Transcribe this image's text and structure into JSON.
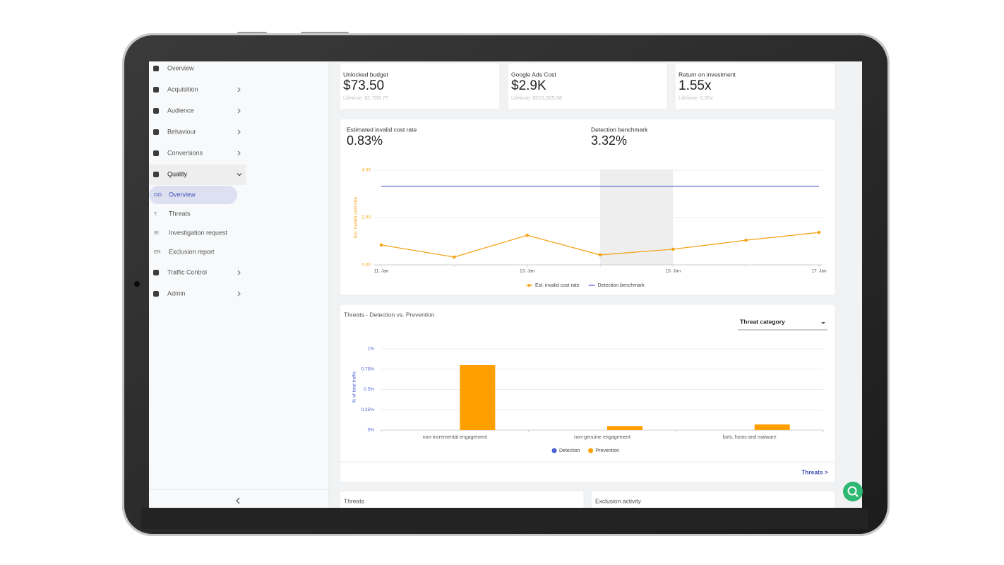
{
  "sidebar": {
    "nav": [
      {
        "label": "Overview",
        "chevron": "none"
      },
      {
        "label": "Acquisition",
        "chevron": "right"
      },
      {
        "label": "Audience",
        "chevron": "right"
      },
      {
        "label": "Behaviour",
        "chevron": "right"
      },
      {
        "label": "Conversions",
        "chevron": "right"
      },
      {
        "label": "Quality",
        "chevron": "down"
      }
    ],
    "quality_sub": [
      {
        "icon": "OO",
        "label": "Overview"
      },
      {
        "icon": "T",
        "label": "Threats"
      },
      {
        "icon": "IR",
        "label": "Investigation request"
      },
      {
        "icon": "ER",
        "label": "Exclusion report"
      }
    ],
    "nav_after": [
      {
        "label": "Traffic Control",
        "chevron": "right"
      },
      {
        "label": "Admin",
        "chevron": "right"
      }
    ]
  },
  "kpis": [
    {
      "label": "Unlocked budget",
      "value": "$73.50",
      "lifetime": "Lifetime: $1,708.77"
    },
    {
      "label": "Google Ads Cost",
      "value": "$2.9K",
      "lifetime": "Lifetime: $215,925.58"
    },
    {
      "label": "Return on investment",
      "value": "1.55x",
      "lifetime": "Lifetime: 0.00x"
    }
  ],
  "line_chart": {
    "type": "line",
    "metrics": [
      {
        "label": "Estimated invalid cost rate",
        "value": "0.83%"
      },
      {
        "label": "Detection benchmark",
        "value": "3.32%"
      }
    ],
    "categories": [
      "11. Jan",
      null,
      "13. Jan",
      null,
      "15. Jan",
      null,
      "17. Jan"
    ],
    "series": [
      {
        "name": "Est. invalid cost rate",
        "color": "#f5a31a",
        "values": [
          0.84,
          0.33,
          1.25,
          0.42,
          0.66,
          1.04,
          1.37
        ]
      },
      {
        "name": "Detection benchmark",
        "color": "#5b6bd1",
        "values": [
          3.32,
          3.32,
          3.32,
          3.32,
          3.32,
          3.32,
          3.32
        ]
      }
    ],
    "ylabel": "Est. invalid cost rate",
    "ylim": [
      0,
      4
    ],
    "yticks": [
      {
        "value": 0,
        "label": "0.00"
      },
      {
        "value": 2,
        "label": "2.00"
      },
      {
        "value": 4,
        "label": "4.00"
      }
    ],
    "grid": true
  },
  "bar_chart": {
    "type": "bar",
    "title": "Threats - Detection vs. Prevention",
    "dropdown": "Threat category",
    "categories": [
      "non-incremental engagement",
      "non-genuine engagement",
      "bots, hosts and malware"
    ],
    "series": [
      {
        "name": "Detection",
        "color": "#4a5fd6",
        "values": [
          0,
          0,
          0
        ]
      },
      {
        "name": "Prevention",
        "color": "#ff9f00",
        "values": [
          0.8,
          0.05,
          0.07
        ]
      }
    ],
    "ylabel": "% of total traffic",
    "ylim": [
      0,
      1
    ],
    "yticks": [
      {
        "value": 0,
        "label": "0%"
      },
      {
        "value": 0.25,
        "label": "0.25%"
      },
      {
        "value": 0.5,
        "label": "0.5%"
      },
      {
        "value": 0.75,
        "label": "0.75%"
      },
      {
        "value": 1,
        "label": "1%"
      }
    ],
    "grid": true,
    "link": "Threats >"
  },
  "bottom_cards": [
    "Threats",
    "Exclusion activity"
  ]
}
